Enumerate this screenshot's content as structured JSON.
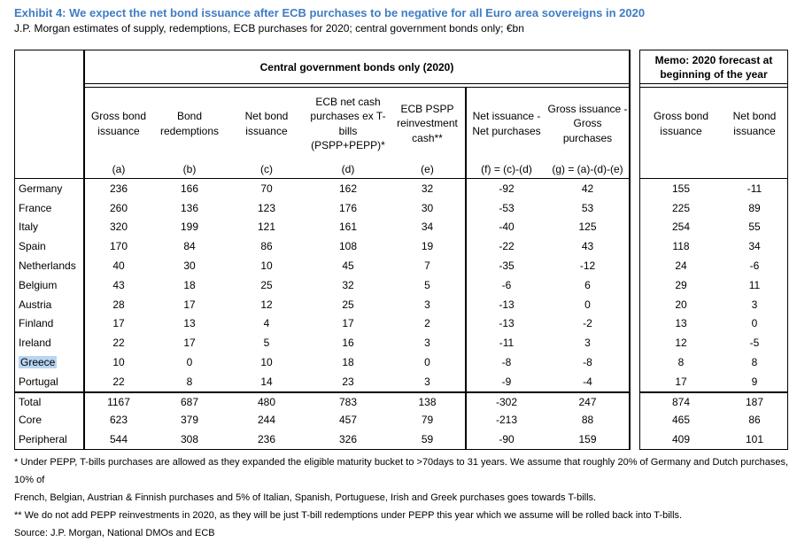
{
  "header": {
    "title": "Exhibit 4: We expect the net bond issuance after ECB purchases to be negative for all Euro area sovereigns in 2020",
    "subtitle": "J.P. Morgan estimates of supply, redemptions, ECB purchases for 2020; central government bonds only; €bn"
  },
  "table": {
    "group_header": "Central government bonds only (2020)",
    "columns": [
      {
        "label": "Gross bond\nissuance",
        "code": "(a)"
      },
      {
        "label": "Bond\nredemptions",
        "code": "(b)"
      },
      {
        "label": "Net bond\nissuance",
        "code": "(c)"
      },
      {
        "label": "ECB net cash\npurchases ex T-\nbills\n(PSPP+PEPP)*",
        "code": "(d)"
      },
      {
        "label": "ECB PSPP\nreinvestment\ncash**",
        "code": "(e)"
      },
      {
        "label": "Net issuance -\nNet purchases",
        "code": "(f) = (c)-(d)"
      },
      {
        "label": "Gross issuance -\nGross\npurchases",
        "code": "(g) = (a)-(d)-(e)"
      }
    ],
    "rows": [
      {
        "name": "Germany",
        "section": "country",
        "highlight": false,
        "values": [
          236,
          166,
          70,
          162,
          32,
          -92,
          42
        ],
        "memo": [
          155,
          -11
        ]
      },
      {
        "name": "France",
        "section": "country",
        "highlight": false,
        "values": [
          260,
          136,
          123,
          176,
          30,
          -53,
          53
        ],
        "memo": [
          225,
          89
        ]
      },
      {
        "name": "Italy",
        "section": "country",
        "highlight": false,
        "values": [
          320,
          199,
          121,
          161,
          34,
          -40,
          125
        ],
        "memo": [
          254,
          55
        ]
      },
      {
        "name": "Spain",
        "section": "country",
        "highlight": false,
        "values": [
          170,
          84,
          86,
          108,
          19,
          -22,
          43
        ],
        "memo": [
          118,
          34
        ]
      },
      {
        "name": "Netherlands",
        "section": "country",
        "highlight": false,
        "values": [
          40,
          30,
          10,
          45,
          7,
          -35,
          -12
        ],
        "memo": [
          24,
          -6
        ]
      },
      {
        "name": "Belgium",
        "section": "country",
        "highlight": false,
        "values": [
          43,
          18,
          25,
          32,
          5,
          -6,
          6
        ],
        "memo": [
          29,
          11
        ]
      },
      {
        "name": "Austria",
        "section": "country",
        "highlight": false,
        "values": [
          28,
          17,
          12,
          25,
          3,
          -13,
          0
        ],
        "memo": [
          20,
          3
        ]
      },
      {
        "name": "Finland",
        "section": "country",
        "highlight": false,
        "values": [
          17,
          13,
          4,
          17,
          2,
          -13,
          -2
        ],
        "memo": [
          13,
          0
        ]
      },
      {
        "name": "Ireland",
        "section": "country",
        "highlight": false,
        "values": [
          22,
          17,
          5,
          16,
          3,
          -11,
          3
        ],
        "memo": [
          12,
          -5
        ]
      },
      {
        "name": "Greece",
        "section": "country",
        "highlight": true,
        "values": [
          10,
          0,
          10,
          18,
          0,
          -8,
          -8
        ],
        "memo": [
          8,
          8
        ]
      },
      {
        "name": "Portugal",
        "section": "country",
        "highlight": false,
        "values": [
          22,
          8,
          14,
          23,
          3,
          -9,
          -4
        ],
        "memo": [
          17,
          9
        ]
      },
      {
        "name": "Total",
        "section": "summary",
        "highlight": false,
        "values": [
          1167,
          687,
          480,
          783,
          138,
          -302,
          247
        ],
        "memo": [
          874,
          187
        ]
      },
      {
        "name": "Core",
        "section": "summary",
        "highlight": false,
        "values": [
          623,
          379,
          244,
          457,
          79,
          -213,
          88
        ],
        "memo": [
          465,
          86
        ]
      },
      {
        "name": "Peripheral",
        "section": "summary",
        "highlight": false,
        "values": [
          544,
          308,
          236,
          326,
          59,
          -90,
          159
        ],
        "memo": [
          409,
          101
        ]
      }
    ]
  },
  "memo": {
    "group_header": "Memo: 2020 forecast at\nbeginning of the year",
    "columns": [
      {
        "label": "Gross bond\nissuance"
      },
      {
        "label": "Net bond\nissuance"
      }
    ]
  },
  "notes": {
    "footnote1": "* Under PEPP, T-bills purchases are allowed as they expanded the eligible maturity bucket to >70days to 31 years. We assume that roughly 20% of Germany and Dutch purchases, 10% of\nFrench, Belgian, Austrian & Finnish purchases and 5% of Italian, Spanish, Portuguese, Irish and Greek purchases goes towards T-bills.",
    "footnote2": "** We do not add PEPP reinvestments in 2020, as they will be just T-bill redemptions under PEPP this year which we assume will be rolled back into T-bills.",
    "source": "Source: J.P. Morgan, National DMOs and ECB"
  },
  "colors": {
    "title_blue": "#3f7dc4",
    "highlight_blue": "#b8d6f2",
    "border_black": "#000000"
  }
}
